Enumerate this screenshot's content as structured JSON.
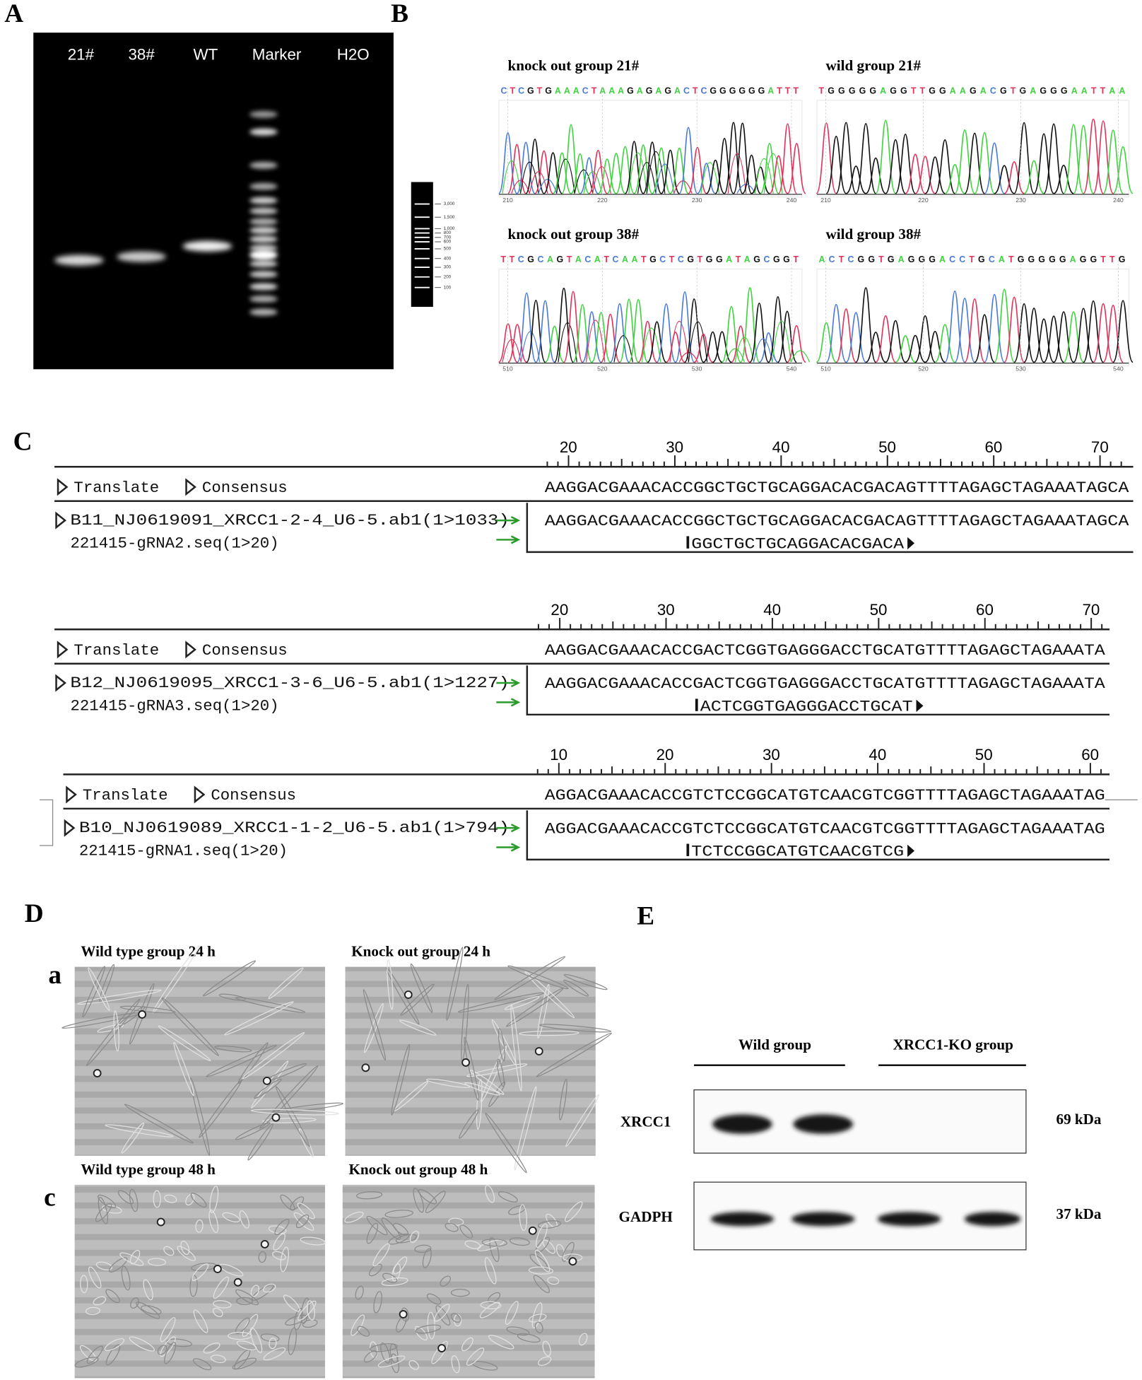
{
  "panel_labels": [
    "A",
    "B",
    "C",
    "D",
    "E"
  ],
  "gel": {
    "lanes": [
      "21#",
      "38#",
      "WT",
      "Marker",
      "H2O"
    ],
    "ladder_labels": [
      "3,000",
      "1,500",
      "1,000",
      "800",
      "700",
      "600",
      "500",
      "400",
      "300",
      "200",
      "100"
    ]
  },
  "chromatograms": [
    {
      "title": "knock out group 21#",
      "sequence": "CTCGTGAAACTAAAGAGAGACTCGGGGGGATTT",
      "axis": [
        "210",
        "220",
        "230",
        "240"
      ]
    },
    {
      "title": "wild group 21#",
      "sequence": "TGGGGGAGGTTGGAAGACGTGAGGGAATTAA",
      "axis": [
        "210",
        "220",
        "230",
        "240"
      ]
    },
    {
      "title": "knock out group 38#",
      "sequence": "TTCGCAGTACATCAATGCTCGTGGATAGCGGT",
      "axis": [
        "510",
        "520",
        "530",
        "540"
      ]
    },
    {
      "title": "wild group 38#",
      "sequence": "ACTCGGTGAGGGACCTGCATGGGGGAGGTTG",
      "axis": [
        "510",
        "520",
        "530",
        "540"
      ]
    }
  ],
  "alignments": [
    {
      "ruler": [
        "20",
        "30",
        "40",
        "50",
        "60",
        "70"
      ],
      "translate": "Translate",
      "consensus_label": "Consensus",
      "consensus": "AAGGACGAAACACCGGCTGCTGCAGGACACGACAGTTTTAGAGCTAGAAATAGCA",
      "read": "B11_NJ0619091_XRCC1-2-4_U6-5.ab1(1>1033)",
      "read_sequence": "AAGGACGAAACACCGGCTGCTGCAGGACACGACAGTTTTAGAGCTAGAAATAGCA",
      "grna": "221415-gRNA2.seq(1>20)",
      "grna_sequence": "GGCTGCTGCAGGACACGACA"
    },
    {
      "ruler": [
        "20",
        "30",
        "40",
        "50",
        "60",
        "70"
      ],
      "translate": "Translate",
      "consensus_label": "Consensus",
      "consensus": "AAGGACGAAACACCGACTCGGTGAGGGACCTGCATGTTTTAGAGCTAGAAATA",
      "read": "B12_NJ0619095_XRCC1-3-6_U6-5.ab1(1>1227)",
      "read_sequence": "AAGGACGAAACACCGACTCGGTGAGGGACCTGCATGTTTTAGAGCTAGAAATA",
      "grna": "221415-gRNA3.seq(1>20)",
      "grna_sequence": "ACTCGGTGAGGGACCTGCAT"
    },
    {
      "ruler": [
        "10",
        "20",
        "30",
        "40",
        "50",
        "60"
      ],
      "translate": "Translate",
      "consensus_label": "Consensus",
      "consensus": "AGGACGAAACACCGTCTCCGGCATGTCAACGTCGGTTTTAGAGCTAGAAATAG",
      "read": "B10_NJ0619089_XRCC1-1-2_U6-5.ab1(1>794)",
      "read_sequence": "AGGACGAAACACCGTCTCCGGCATGTCAACGTCGGTTTTAGAGCTAGAAATAG",
      "grna": "221415-gRNA1.seq(1>20)",
      "grna_sequence": "TCTCCGGCATGTCAACGTCG"
    }
  ],
  "microscopy": {
    "row_labels": [
      "a",
      "c"
    ],
    "images": [
      {
        "title": "Wild type group 24 h"
      },
      {
        "title": "Knock out group 24 h"
      },
      {
        "title": "Wild type group 48 h"
      },
      {
        "title": "Knock out group 48 h"
      }
    ]
  },
  "western": {
    "groups": [
      "Wild group",
      "XRCC1-KO group"
    ],
    "proteins": [
      {
        "name": "XRCC1",
        "size": "69 kDa"
      },
      {
        "name": "GADPH",
        "size": "37 kDa"
      }
    ]
  }
}
